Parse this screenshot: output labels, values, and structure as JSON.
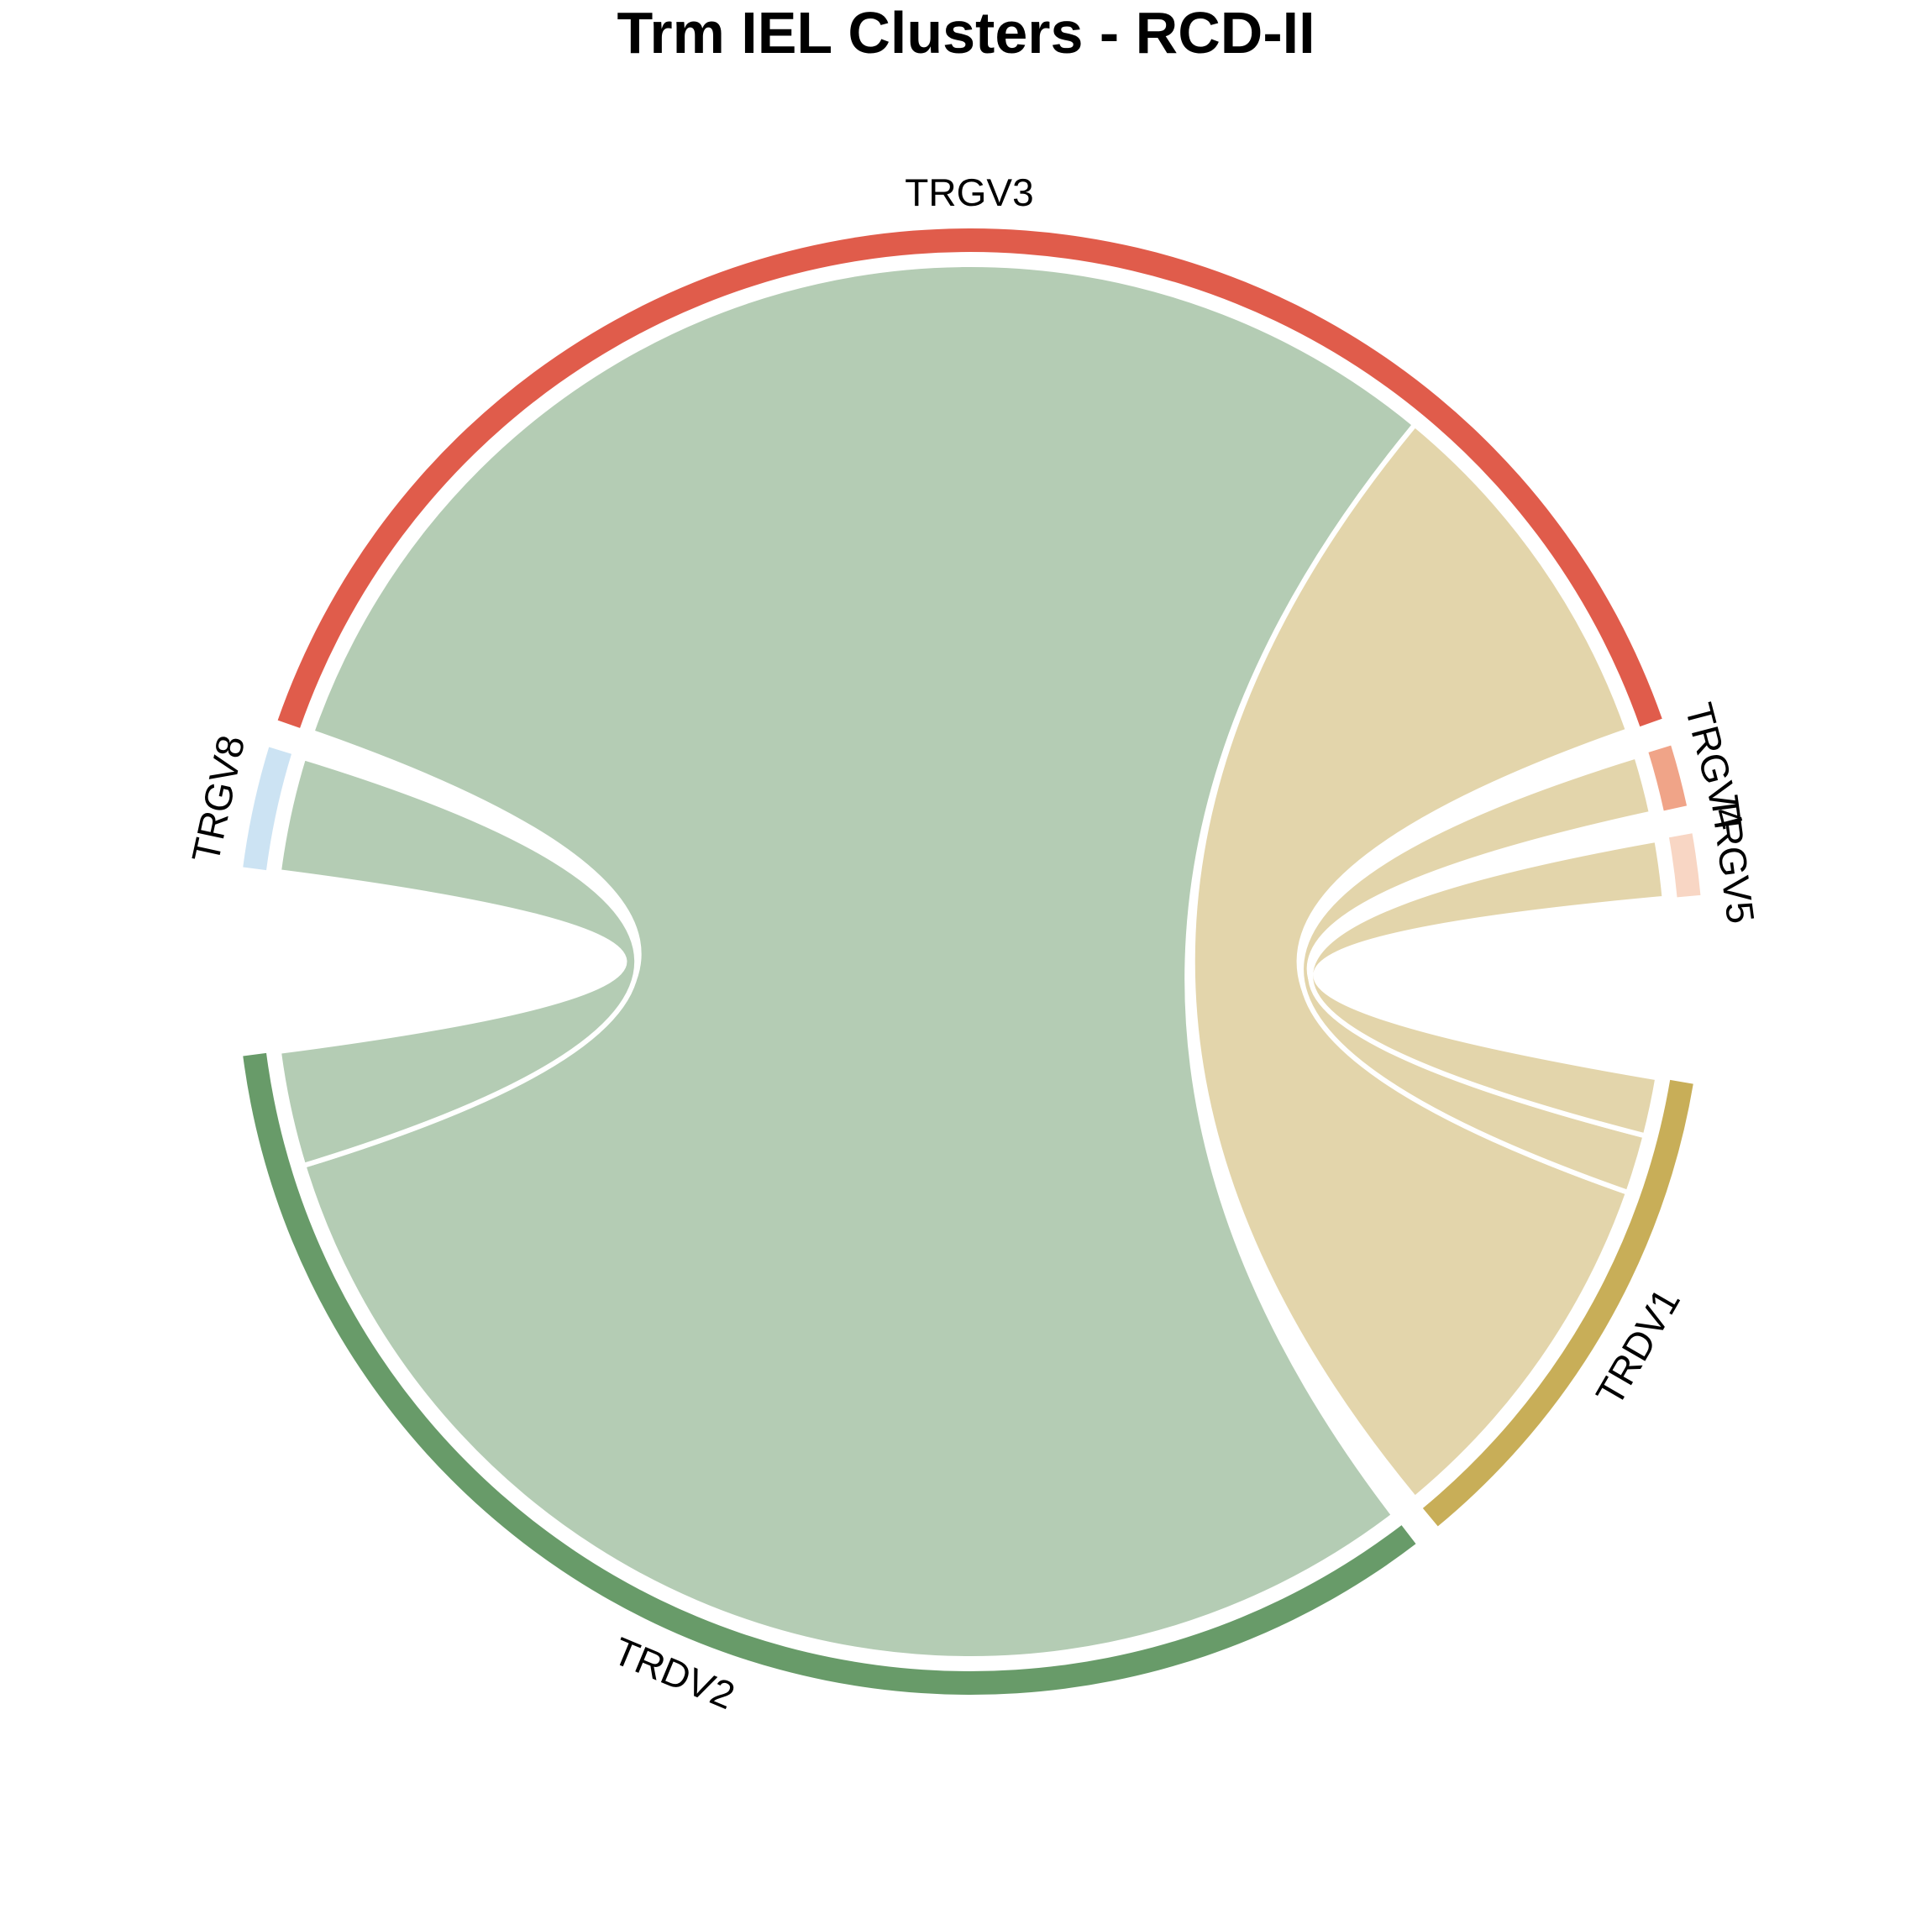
{
  "chart_data": {
    "type": "chord",
    "title": "Trm IEL Clusters - RCD-II",
    "sectors": [
      {
        "name": "TRGV3",
        "group": "TRGV",
        "color": "#E05C4B",
        "value": 1103
      },
      {
        "name": "TRGV4",
        "group": "TRGV",
        "color": "#F0A488",
        "value": 38
      },
      {
        "name": "TRGV5",
        "group": "TRGV",
        "color": "#F8D6C4",
        "value": 38
      },
      {
        "name": "TRGV8",
        "group": "TRGV",
        "color": "#CCE3F3",
        "value": 75
      },
      {
        "name": "TRDV1",
        "group": "TRDV",
        "color": "#C8AE58",
        "value": 318
      },
      {
        "name": "TRDV2",
        "group": "TRDV",
        "color": "#689B69",
        "value": 936
      }
    ],
    "links": [
      {
        "from": "TRGV3",
        "to": "TRDV2",
        "value": 861,
        "color": "#B4CCB4"
      },
      {
        "from": "TRGV3",
        "to": "TRDV1",
        "value": 242,
        "color": "#E3D5AB"
      },
      {
        "from": "TRGV4",
        "to": "TRDV1",
        "value": 38,
        "color": "#E3D5AB"
      },
      {
        "from": "TRGV5",
        "to": "TRDV1",
        "value": 38,
        "color": "#E3D5AB"
      },
      {
        "from": "TRGV8",
        "to": "TRDV2",
        "value": 75,
        "color": "#B4CCB4"
      }
    ]
  }
}
